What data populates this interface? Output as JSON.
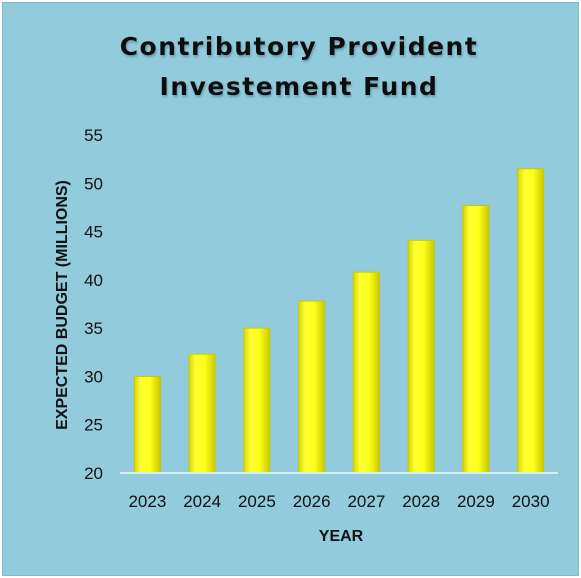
{
  "chart_data": {
    "type": "bar",
    "title_lines": [
      "Contributory Provident",
      "Investement Fund"
    ],
    "xlabel": "YEAR",
    "ylabel": "EXPECTED BUDGET (MILLIONS)",
    "categories": [
      "2023",
      "2024",
      "2025",
      "2026",
      "2027",
      "2028",
      "2029",
      "2030"
    ],
    "values": [
      30,
      32.3,
      35,
      37.8,
      40.8,
      44.1,
      47.7,
      51.5
    ],
    "ylim": [
      20,
      55
    ],
    "yticks": [
      20,
      25,
      30,
      35,
      40,
      45,
      50,
      55
    ],
    "grid": false,
    "bar_color": "#ffff1a",
    "bar_edge_color": "#c8c800",
    "background_color": "#92cbdc"
  }
}
